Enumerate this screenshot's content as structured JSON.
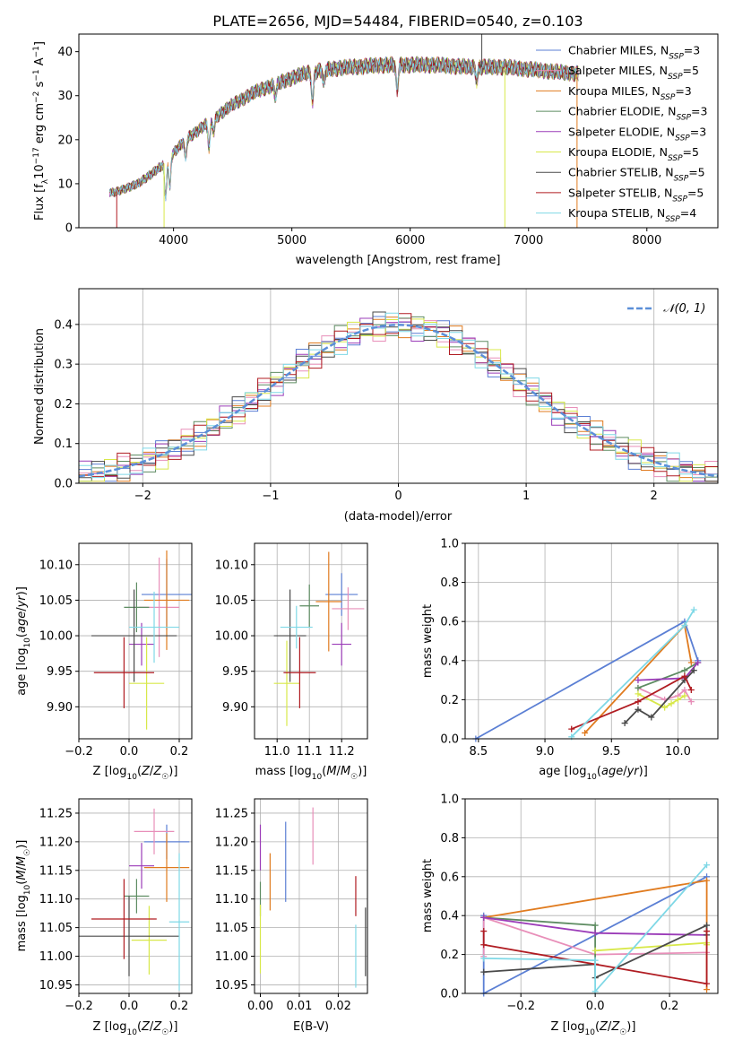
{
  "figure_title": "PLATE=2656, MJD=54484, FIBERID=0540, z=0.103",
  "series_styles": [
    {
      "name": "Chabrier MILES, N_SSP=3",
      "legend_main": "Chabrier MILES, N",
      "legend_sub": "SSP",
      "legend_tail": "=3",
      "color": "#5b7fd4"
    },
    {
      "name": "Salpeter MILES, N_SSP=5",
      "legend_main": "Salpeter MILES, N",
      "legend_sub": "SSP",
      "legend_tail": "=5",
      "color": "#e88fb9"
    },
    {
      "name": "Kroupa MILES, N_SSP=3",
      "legend_main": "Kroupa MILES, N",
      "legend_sub": "SSP",
      "legend_tail": "=3",
      "color": "#e07b1f"
    },
    {
      "name": "Chabrier ELODIE, N_SSP=3",
      "legend_main": "Chabrier ELODIE, N",
      "legend_sub": "SSP",
      "legend_tail": "=3",
      "color": "#5e8c62"
    },
    {
      "name": "Salpeter ELODIE, N_SSP=3",
      "legend_main": "Salpeter ELODIE, N",
      "legend_sub": "SSP",
      "legend_tail": "=3",
      "color": "#9b3cb8"
    },
    {
      "name": "Kroupa ELODIE, N_SSP=5",
      "legend_main": "Kroupa ELODIE, N",
      "legend_sub": "SSP",
      "legend_tail": "=5",
      "color": "#d8e84a"
    },
    {
      "name": "Chabrier STELIB, N_SSP=5",
      "legend_main": "Chabrier STELIB, N",
      "legend_sub": "SSP",
      "legend_tail": "=5",
      "color": "#4a4a4a"
    },
    {
      "name": "Salpeter STELIB, N_SSP=5",
      "legend_main": "Salpeter STELIB, N",
      "legend_sub": "SSP",
      "legend_tail": "=5",
      "color": "#b01c22"
    },
    {
      "name": "Kroupa STELIB, N_SSP=4",
      "legend_main": "Kroupa STELIB, N",
      "legend_sub": "SSP",
      "legend_tail": "=4",
      "color": "#7fd8e6"
    }
  ],
  "chart_data": [
    {
      "id": "spectrum",
      "type": "line",
      "xlabel": "wavelength [Angstrom, rest frame]",
      "ylabel": "Flux [f_λ 10^-17 erg cm^-2 s^-1 A^-1]",
      "xlim": [
        3200,
        8600
      ],
      "ylim": [
        0,
        44
      ],
      "xticks": [
        4000,
        5000,
        6000,
        7000,
        8000
      ],
      "yticks": [
        0,
        10,
        20,
        30,
        40
      ],
      "grid": false,
      "legend_position": "upper right",
      "continuum": {
        "x": [
          3500,
          3700,
          3900,
          4000,
          4100,
          4300,
          4500,
          4700,
          4900,
          5100,
          5300,
          5500,
          5800,
          6000,
          6200,
          6500,
          6800,
          7000,
          7200,
          7400
        ],
        "y": [
          8,
          10,
          14,
          17,
          20,
          24,
          28,
          31,
          33,
          35,
          36,
          36.5,
          37,
          37,
          37,
          36.5,
          36.5,
          36,
          35.5,
          35
        ]
      },
      "features": [
        {
          "x": 3933,
          "depth": 8
        },
        {
          "x": 3968,
          "depth": 7
        },
        {
          "x": 4102,
          "depth": 4
        },
        {
          "x": 4300,
          "depth": 6
        },
        {
          "x": 4340,
          "depth": 3
        },
        {
          "x": 4861,
          "depth": 3
        },
        {
          "x": 5175,
          "depth": 7
        },
        {
          "x": 5270,
          "depth": 3
        },
        {
          "x": 5890,
          "depth": 6
        },
        {
          "x": 6563,
          "depth": 3
        }
      ],
      "spikes": [
        {
          "x": 3520,
          "series": "Salpeter STELIB, N_SSP=5",
          "to": 0
        },
        {
          "x": 3920,
          "series": "Kroupa ELODIE, N_SSP=5",
          "to": 0
        },
        {
          "x": 6800,
          "series": "Kroupa ELODIE, N_SSP=5",
          "to": 0
        },
        {
          "x": 7410,
          "series": "Kroupa MILES, N_SSP=3",
          "to": 0
        },
        {
          "x": 6605,
          "series": "Chabrier STELIB, N_SSP=5",
          "to": 44
        }
      ]
    },
    {
      "id": "residual-histogram",
      "type": "histogram",
      "xlabel": "(data-model)/error",
      "ylabel": "Normed distribution",
      "xlim": [
        -2.5,
        2.5
      ],
      "ylim": [
        0,
        0.49
      ],
      "xticks": [
        -2,
        -1,
        0,
        1,
        2
      ],
      "yticks": [
        0.0,
        0.1,
        0.2,
        0.3,
        0.4
      ],
      "grid": true,
      "bin_width": 0.1,
      "reference_curve": {
        "label": "N(0,1)",
        "color": "#5b8fd8",
        "style": "dashed"
      },
      "legend_position": "upper right"
    },
    {
      "id": "age-vs-Z",
      "type": "scatter",
      "xlabel": "Z [log10(Z/Z☉)]",
      "ylabel": "age  [log10(age/yr)]",
      "xlim": [
        -0.2,
        0.25
      ],
      "ylim": [
        9.855,
        10.13
      ],
      "xticks": [
        -0.2,
        0.0,
        0.2
      ],
      "yticks": [
        9.9,
        9.95,
        10.0,
        10.05,
        10.1
      ],
      "grid": true,
      "points": [
        {
          "series": "Chabrier MILES, N_SSP=3",
          "x": 0.15,
          "y": 10.058,
          "xerr": 0.1,
          "yerr": 0.05
        },
        {
          "series": "Salpeter MILES, N_SSP=5",
          "x": 0.12,
          "y": 10.04,
          "xerr": 0.08,
          "yerr": 0.07
        },
        {
          "series": "Kroupa MILES, N_SSP=3",
          "x": 0.15,
          "y": 10.05,
          "xerr": 0.09,
          "yerr": 0.07
        },
        {
          "series": "Chabrier ELODIE, N_SSP=3",
          "x": 0.03,
          "y": 10.04,
          "xerr": 0.05,
          "yerr": 0.035
        },
        {
          "series": "Salpeter ELODIE, N_SSP=3",
          "x": 0.05,
          "y": 9.988,
          "xerr": 0.05,
          "yerr": 0.03
        },
        {
          "series": "Kroupa ELODIE, N_SSP=5",
          "x": 0.07,
          "y": 9.933,
          "xerr": 0.07,
          "yerr": 0.065
        },
        {
          "series": "Chabrier STELIB, N_SSP=5",
          "x": 0.02,
          "y": 10.0,
          "xerr": 0.17,
          "yerr": 0.065
        },
        {
          "series": "Salpeter STELIB, N_SSP=5",
          "x": -0.02,
          "y": 9.948,
          "xerr": 0.12,
          "yerr": 0.05
        },
        {
          "series": "Kroupa STELIB, N_SSP=4",
          "x": 0.1,
          "y": 10.012,
          "xerr": 0.1,
          "yerr": 0.05
        }
      ]
    },
    {
      "id": "age-vs-mass",
      "type": "scatter",
      "xlabel": "mass [log10(M/M☉)]",
      "ylabel": "",
      "xlim": [
        10.93,
        11.28
      ],
      "ylim": [
        9.855,
        10.13
      ],
      "xticks": [
        11.0,
        11.1,
        11.2
      ],
      "yticks": [
        9.9,
        9.95,
        10.0,
        10.05,
        10.1
      ],
      "grid": true,
      "points": [
        {
          "series": "Chabrier MILES, N_SSP=3",
          "x": 11.2,
          "y": 10.058,
          "xerr": 0.05,
          "yerr": 0.03
        },
        {
          "series": "Salpeter MILES, N_SSP=5",
          "x": 11.22,
          "y": 10.038,
          "xerr": 0.05,
          "yerr": 0.03
        },
        {
          "series": "Kroupa MILES, N_SSP=3",
          "x": 11.16,
          "y": 10.048,
          "xerr": 0.04,
          "yerr": 0.07
        },
        {
          "series": "Chabrier ELODIE, N_SSP=3",
          "x": 11.1,
          "y": 10.042,
          "xerr": 0.03,
          "yerr": 0.03
        },
        {
          "series": "Salpeter ELODIE, N_SSP=3",
          "x": 11.2,
          "y": 9.988,
          "xerr": 0.03,
          "yerr": 0.03
        },
        {
          "series": "Kroupa ELODIE, N_SSP=5",
          "x": 11.03,
          "y": 9.933,
          "xerr": 0.04,
          "yerr": 0.06
        },
        {
          "series": "Chabrier STELIB, N_SSP=5",
          "x": 11.04,
          "y": 10.0,
          "xerr": 0.05,
          "yerr": 0.065
        },
        {
          "series": "Salpeter STELIB, N_SSP=5",
          "x": 11.07,
          "y": 9.948,
          "xerr": 0.05,
          "yerr": 0.05
        },
        {
          "series": "Kroupa STELIB, N_SSP=4",
          "x": 11.06,
          "y": 10.012,
          "xerr": 0.05,
          "yerr": 0.03
        }
      ]
    },
    {
      "id": "mass-weight-vs-age",
      "type": "line",
      "xlabel": "age  [log10(age/yr)]",
      "ylabel": "mass weight",
      "xlim": [
        8.4,
        10.3
      ],
      "ylim": [
        0,
        1
      ],
      "xticks": [
        8.5,
        9.0,
        9.5,
        10.0
      ],
      "yticks": [
        0.0,
        0.2,
        0.4,
        0.6,
        0.8,
        1.0
      ],
      "grid": true,
      "series": [
        {
          "series": "Chabrier MILES, N_SSP=3",
          "x": [
            8.48,
            10.05,
            10.15
          ],
          "y": [
            0.0,
            0.6,
            0.4
          ]
        },
        {
          "series": "Salpeter MILES, N_SSP=5",
          "x": [
            9.7,
            9.9,
            10.0,
            10.05,
            10.1
          ],
          "y": [
            0.26,
            0.2,
            0.22,
            0.25,
            0.19
          ]
        },
        {
          "series": "Kroupa MILES, N_SSP=3",
          "x": [
            9.3,
            10.05,
            10.1
          ],
          "y": [
            0.03,
            0.58,
            0.39
          ]
        },
        {
          "series": "Chabrier ELODIE, N_SSP=3",
          "x": [
            9.7,
            10.05,
            10.15
          ],
          "y": [
            0.26,
            0.35,
            0.39
          ]
        },
        {
          "series": "Salpeter ELODIE, N_SSP=3",
          "x": [
            9.7,
            10.05,
            10.15
          ],
          "y": [
            0.3,
            0.31,
            0.39
          ]
        },
        {
          "series": "Kroupa ELODIE, N_SSP=5",
          "x": [
            9.7,
            9.9,
            9.95,
            10.0,
            10.05
          ],
          "y": [
            0.23,
            0.16,
            0.18,
            0.2,
            0.22
          ]
        },
        {
          "series": "Chabrier STELIB, N_SSP=5",
          "x": [
            9.6,
            9.7,
            9.8,
            10.05,
            10.12
          ],
          "y": [
            0.08,
            0.15,
            0.11,
            0.3,
            0.35
          ]
        },
        {
          "series": "Salpeter STELIB, N_SSP=5",
          "x": [
            9.2,
            9.7,
            10.05,
            10.1
          ],
          "y": [
            0.05,
            0.19,
            0.32,
            0.25
          ]
        },
        {
          "series": "Kroupa STELIB, N_SSP=4",
          "x": [
            9.2,
            10.05,
            10.12
          ],
          "y": [
            0.01,
            0.58,
            0.66
          ]
        }
      ]
    },
    {
      "id": "mass-vs-Z",
      "type": "scatter",
      "xlabel": "Z [log10(Z/Z☉)]",
      "ylabel": "mass [log10(M/M☉)]",
      "xlim": [
        -0.2,
        0.25
      ],
      "ylim": [
        10.935,
        11.275
      ],
      "xticks": [
        -0.2,
        0.0,
        0.2
      ],
      "yticks": [
        10.95,
        11.0,
        11.05,
        11.1,
        11.15,
        11.2,
        11.25
      ],
      "grid": true,
      "points": [
        {
          "series": "Chabrier MILES, N_SSP=3",
          "x": 0.15,
          "y": 11.2,
          "xerr": 0.09,
          "yerr": 0.03
        },
        {
          "series": "Salpeter MILES, N_SSP=5",
          "x": 0.1,
          "y": 11.218,
          "xerr": 0.08,
          "yerr": 0.04
        },
        {
          "series": "Kroupa MILES, N_SSP=3",
          "x": 0.15,
          "y": 11.155,
          "xerr": 0.09,
          "yerr": 0.06
        },
        {
          "series": "Chabrier ELODIE, N_SSP=3",
          "x": 0.03,
          "y": 11.105,
          "xerr": 0.05,
          "yerr": 0.03
        },
        {
          "series": "Salpeter ELODIE, N_SSP=3",
          "x": 0.05,
          "y": 11.158,
          "xerr": 0.05,
          "yerr": 0.04
        },
        {
          "series": "Kroupa ELODIE, N_SSP=5",
          "x": 0.08,
          "y": 11.028,
          "xerr": 0.07,
          "yerr": 0.06
        },
        {
          "series": "Chabrier STELIB, N_SSP=5",
          "x": 0.0,
          "y": 11.035,
          "xerr": 0.2,
          "yerr": 0.07
        },
        {
          "series": "Salpeter STELIB, N_SSP=5",
          "x": -0.02,
          "y": 11.065,
          "xerr": 0.13,
          "yerr": 0.07
        },
        {
          "series": "Kroupa STELIB, N_SSP=4",
          "x": 0.2,
          "y": 11.06,
          "xerr": 0.04,
          "yerr": 0.12
        }
      ]
    },
    {
      "id": "mass-vs-EBV",
      "type": "scatter",
      "xlabel": "E(B-V)",
      "ylabel": "",
      "xlim": [
        -0.0015,
        0.0275
      ],
      "ylim": [
        10.935,
        11.275
      ],
      "xticks": [
        0.0,
        0.01,
        0.02
      ],
      "yticks": [
        10.95,
        11.0,
        11.05,
        11.1,
        11.15,
        11.2,
        11.25
      ],
      "grid": true,
      "points": [
        {
          "series": "Chabrier MILES, N_SSP=3",
          "x": 0.0065,
          "y": 11.165,
          "xerr": 0,
          "yerr": 0.07
        },
        {
          "series": "Salpeter MILES, N_SSP=5",
          "x": 0.0135,
          "y": 11.21,
          "xerr": 0,
          "yerr": 0.05
        },
        {
          "series": "Kroupa MILES, N_SSP=3",
          "x": 0.0025,
          "y": 11.13,
          "xerr": 0,
          "yerr": 0.05
        },
        {
          "series": "Chabrier ELODIE, N_SSP=3",
          "x": 0.0,
          "y": 11.1,
          "xerr": 0,
          "yerr": 0.03
        },
        {
          "series": "Salpeter ELODIE, N_SSP=3",
          "x": 0.0,
          "y": 11.19,
          "xerr": 0,
          "yerr": 0.04
        },
        {
          "series": "Kroupa ELODIE, N_SSP=5",
          "x": 0.0,
          "y": 11.03,
          "xerr": 0,
          "yerr": 0.06
        },
        {
          "series": "Chabrier STELIB, N_SSP=5",
          "x": 0.027,
          "y": 11.025,
          "xerr": 0,
          "yerr": 0.06
        },
        {
          "series": "Salpeter STELIB, N_SSP=5",
          "x": 0.0245,
          "y": 11.105,
          "xerr": 0,
          "yerr": 0.035
        },
        {
          "series": "Kroupa STELIB, N_SSP=4",
          "x": 0.0245,
          "y": 11.0,
          "xerr": 0,
          "yerr": 0.055
        }
      ]
    },
    {
      "id": "mass-weight-vs-Z",
      "type": "line",
      "xlabel": "Z [log10(Z/Z☉)]",
      "ylabel": "mass weight",
      "xlim": [
        -0.35,
        0.33
      ],
      "ylim": [
        0,
        1
      ],
      "xticks": [
        -0.2,
        0.0,
        0.2
      ],
      "yticks": [
        0.0,
        0.2,
        0.4,
        0.6,
        0.8,
        1.0
      ],
      "grid": true,
      "series": [
        {
          "series": "Chabrier MILES, N_SSP=3",
          "x": [
            -0.3,
            -0.3,
            0.3
          ],
          "y": [
            0.4,
            0.0,
            0.6
          ]
        },
        {
          "series": "Salpeter MILES, N_SSP=5",
          "x": [
            -0.3,
            -0.3,
            0.0,
            0.3
          ],
          "y": [
            0.19,
            0.39,
            0.2,
            0.21
          ]
        },
        {
          "series": "Kroupa MILES, N_SSP=3",
          "x": [
            -0.3,
            0.3,
            0.3
          ],
          "y": [
            0.39,
            0.58,
            0.02
          ]
        },
        {
          "series": "Chabrier ELODIE, N_SSP=3",
          "x": [
            -0.3,
            0.0,
            0.0
          ],
          "y": [
            0.39,
            0.35,
            0.15
          ]
        },
        {
          "series": "Salpeter ELODIE, N_SSP=3",
          "x": [
            -0.3,
            0.0,
            0.3
          ],
          "y": [
            0.39,
            0.31,
            0.3
          ]
        },
        {
          "series": "Kroupa ELODIE, N_SSP=5",
          "x": [
            0.0,
            0.3,
            0.3
          ],
          "y": [
            0.22,
            0.26,
            0.25
          ]
        },
        {
          "series": "Chabrier STELIB, N_SSP=5",
          "x": [
            -0.3,
            0.0,
            0.0,
            0.3,
            0.3
          ],
          "y": [
            0.11,
            0.15,
            0.08,
            0.35,
            0.3
          ]
        },
        {
          "series": "Salpeter STELIB, N_SSP=5",
          "x": [
            -0.3,
            -0.3,
            0.3,
            0.3
          ],
          "y": [
            0.32,
            0.25,
            0.05,
            0.32
          ]
        },
        {
          "series": "Kroupa STELIB, N_SSP=4",
          "x": [
            -0.3,
            0.0,
            0.0,
            0.3
          ],
          "y": [
            0.18,
            0.17,
            0.01,
            0.66
          ]
        }
      ]
    }
  ]
}
